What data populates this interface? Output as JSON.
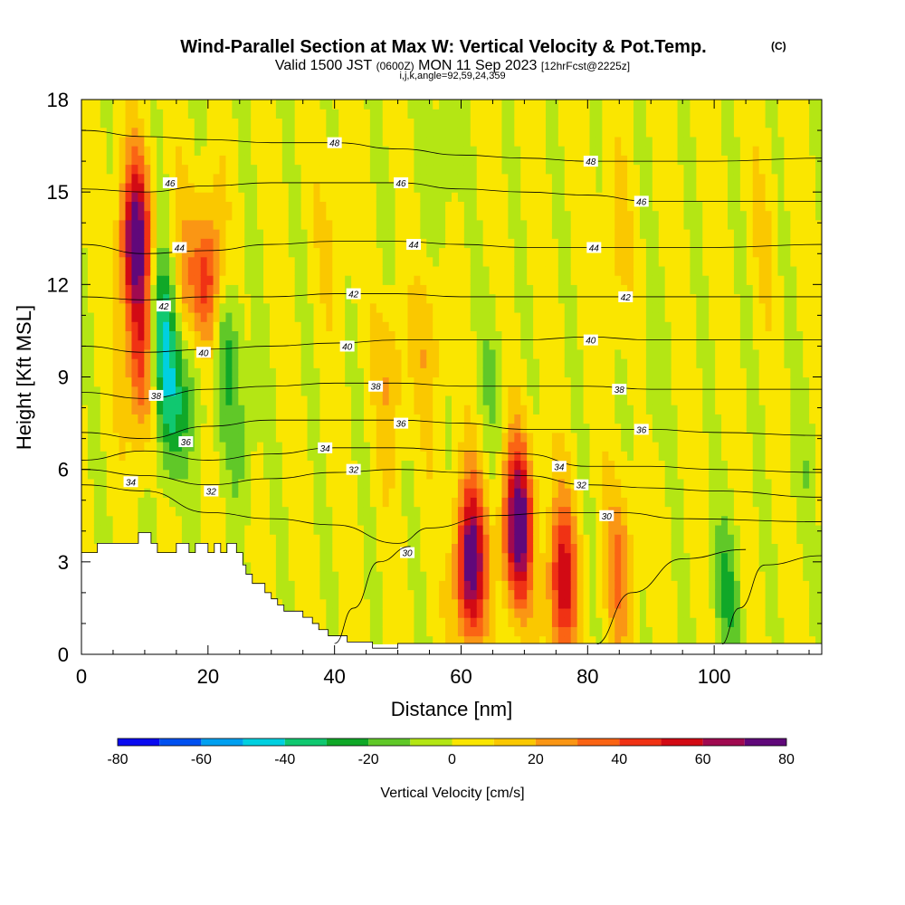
{
  "chart_data": {
    "type": "heatmap",
    "title": "Wind-Parallel Section at Max W: Vertical Velocity & Pot.Temp.",
    "title_mark": "(C)",
    "subtitle_parts": [
      "Valid 1500 JST",
      "(0600Z)",
      "MON 11 Sep 2023",
      "[12hrFcst@2225z]"
    ],
    "subtitle3": "i,j,k,angle=92,59,24,359",
    "xlabel": "Distance [nm]",
    "ylabel": "Height [Kft MSL]",
    "xlim": [
      0,
      117
    ],
    "ylim": [
      0,
      18
    ],
    "xticks": [
      0,
      20,
      40,
      60,
      80,
      100
    ],
    "yticks": [
      0,
      3,
      6,
      9,
      12,
      15,
      18
    ],
    "grid": false,
    "colorbar": {
      "label": "Vertical Velocity [cm/s]",
      "ticks": [
        -80,
        -60,
        -40,
        -20,
        0,
        20,
        40,
        60,
        80
      ],
      "levels": [
        -80,
        -70,
        -60,
        -50,
        -40,
        -30,
        -20,
        -10,
        0,
        10,
        20,
        30,
        40,
        50,
        60,
        70,
        80
      ],
      "colors": [
        "#0a0af0",
        "#0050f0",
        "#00a0f0",
        "#00d0e0",
        "#10c870",
        "#10a828",
        "#60c828",
        "#b4e614",
        "#fae600",
        "#fac800",
        "#fa9614",
        "#fa6414",
        "#f03214",
        "#d20a14",
        "#a00a50",
        "#60087a"
      ]
    },
    "cells": [
      {
        "x": 8.5,
        "z": 13.5,
        "w": 75
      },
      {
        "x": 9.5,
        "z": 9.5,
        "w": 45
      },
      {
        "x": 12.5,
        "z": 10.5,
        "w": -45
      },
      {
        "x": 14,
        "z": 8,
        "w": -30
      },
      {
        "x": 16,
        "z": 12,
        "w": 20
      },
      {
        "x": 18,
        "z": 9,
        "w": -20
      },
      {
        "x": 20,
        "z": 12,
        "w": 48
      },
      {
        "x": 23,
        "z": 10,
        "w": -25
      },
      {
        "x": 25.5,
        "z": 7,
        "w": -15
      },
      {
        "x": 40,
        "z": 14,
        "w": 8
      },
      {
        "x": 49,
        "z": 9,
        "w": 18
      },
      {
        "x": 50,
        "z": 14,
        "w": -5
      },
      {
        "x": 55,
        "z": 10,
        "w": 15
      },
      {
        "x": 57,
        "z": 16,
        "w": -15
      },
      {
        "x": 61.5,
        "z": 3,
        "w": 78
      },
      {
        "x": 65,
        "z": 9,
        "w": -12
      },
      {
        "x": 69,
        "z": 4.2,
        "w": 80
      },
      {
        "x": 76,
        "z": 2.4,
        "w": 55
      },
      {
        "x": 85,
        "z": 2.8,
        "w": 28
      },
      {
        "x": 84,
        "z": 13,
        "w": 12
      },
      {
        "x": 90,
        "z": 9,
        "w": -10
      },
      {
        "x": 102,
        "z": 2,
        "w": -22
      },
      {
        "x": 108,
        "z": 14,
        "w": 6
      },
      {
        "x": 114,
        "z": 6,
        "w": -8
      }
    ],
    "terrain": {
      "x": [
        0,
        2.5,
        2.5,
        5,
        5,
        9,
        9,
        11,
        11,
        12,
        12,
        15,
        15,
        17,
        17,
        18,
        18,
        20,
        20,
        21,
        21,
        22,
        22,
        23,
        23,
        24.5,
        24.5,
        25.5,
        25.5,
        26,
        26,
        27,
        27,
        29,
        29,
        30,
        30,
        31,
        31,
        32,
        32,
        35,
        35,
        36.5,
        36.5,
        37.5,
        37.5,
        39,
        39,
        42,
        42,
        46,
        46,
        50,
        50,
        117
      ],
      "z": [
        3.3,
        3.3,
        3.6,
        3.6,
        3.6,
        3.6,
        3.95,
        3.95,
        3.6,
        3.6,
        3.3,
        3.3,
        3.6,
        3.6,
        3.3,
        3.3,
        3.6,
        3.6,
        3.3,
        3.3,
        3.6,
        3.6,
        3.3,
        3.3,
        3.6,
        3.6,
        3.3,
        3.3,
        2.9,
        2.9,
        2.6,
        2.6,
        2.3,
        2.3,
        2.0,
        2.0,
        1.8,
        1.8,
        1.6,
        1.6,
        1.4,
        1.4,
        1.2,
        1.2,
        1.0,
        1.0,
        0.8,
        0.8,
        0.6,
        0.6,
        0.4,
        0.4,
        0.2,
        0.2,
        0.35,
        0.35
      ]
    },
    "theta_contours": [
      {
        "value": 30,
        "points": [
          [
            0,
            5.5
          ],
          [
            10,
            5.3
          ],
          [
            20,
            4.6
          ],
          [
            30,
            4.4
          ],
          [
            40,
            4.2
          ],
          [
            50,
            3.6
          ],
          [
            55,
            4.1
          ],
          [
            65,
            4.5
          ],
          [
            75,
            4.6
          ],
          [
            85,
            4.6
          ],
          [
            95,
            4.4
          ],
          [
            117,
            4.3
          ]
        ],
        "labels": [
          {
            "text": "30",
            "x": 51.5,
            "z": 3.3
          },
          {
            "text": "30",
            "x": 83,
            "z": 4.5
          }
        ]
      },
      {
        "value": 32,
        "points": [
          [
            0,
            6.0
          ],
          [
            10,
            5.8
          ],
          [
            20,
            5.5
          ],
          [
            30,
            5.7
          ],
          [
            40,
            5.9
          ],
          [
            50,
            6.0
          ],
          [
            60,
            5.9
          ],
          [
            70,
            5.8
          ],
          [
            80,
            5.5
          ],
          [
            90,
            5.4
          ],
          [
            100,
            5.3
          ],
          [
            117,
            5.1
          ]
        ],
        "labels": [
          {
            "text": "32",
            "x": 20.5,
            "z": 5.3
          },
          {
            "text": "32",
            "x": 43,
            "z": 6.0
          },
          {
            "text": "32",
            "x": 79,
            "z": 5.5
          }
        ]
      },
      {
        "value": 34,
        "points": [
          [
            0,
            6.3
          ],
          [
            10,
            6.6
          ],
          [
            20,
            6.3
          ],
          [
            30,
            6.5
          ],
          [
            40,
            6.7
          ],
          [
            50,
            6.7
          ],
          [
            60,
            6.6
          ],
          [
            70,
            6.5
          ],
          [
            80,
            6.1
          ],
          [
            90,
            6.1
          ],
          [
            100,
            6.0
          ],
          [
            117,
            5.9
          ]
        ],
        "labels": [
          {
            "text": "34",
            "x": 7.8,
            "z": 5.6
          },
          {
            "text": "34",
            "x": 38.5,
            "z": 6.7
          },
          {
            "text": "34",
            "x": 75.5,
            "z": 6.1
          }
        ]
      },
      {
        "value": 36,
        "points": [
          [
            0,
            7.2
          ],
          [
            10,
            7.0
          ],
          [
            20,
            7.4
          ],
          [
            30,
            7.6
          ],
          [
            40,
            7.6
          ],
          [
            50,
            7.6
          ],
          [
            60,
            7.5
          ],
          [
            70,
            7.3
          ],
          [
            80,
            7.3
          ],
          [
            90,
            7.3
          ],
          [
            100,
            7.2
          ],
          [
            117,
            7.1
          ]
        ],
        "labels": [
          {
            "text": "36",
            "x": 16.5,
            "z": 6.9
          },
          {
            "text": "36",
            "x": 50.5,
            "z": 7.5
          },
          {
            "text": "36",
            "x": 88.5,
            "z": 7.3
          }
        ]
      },
      {
        "value": 38,
        "points": [
          [
            0,
            8.5
          ],
          [
            10,
            8.3
          ],
          [
            20,
            8.6
          ],
          [
            30,
            8.7
          ],
          [
            40,
            8.8
          ],
          [
            50,
            8.8
          ],
          [
            60,
            8.7
          ],
          [
            70,
            8.7
          ],
          [
            80,
            8.7
          ],
          [
            90,
            8.6
          ],
          [
            100,
            8.6
          ],
          [
            117,
            8.6
          ]
        ],
        "labels": [
          {
            "text": "38",
            "x": 11.8,
            "z": 8.4
          },
          {
            "text": "38",
            "x": 46.5,
            "z": 8.7
          },
          {
            "text": "38",
            "x": 85,
            "z": 8.6
          }
        ]
      },
      {
        "value": 40,
        "points": [
          [
            0,
            10.0
          ],
          [
            10,
            9.8
          ],
          [
            20,
            9.9
          ],
          [
            30,
            10.0
          ],
          [
            40,
            10.1
          ],
          [
            50,
            10.2
          ],
          [
            60,
            10.2
          ],
          [
            70,
            10.2
          ],
          [
            80,
            10.3
          ],
          [
            90,
            10.2
          ],
          [
            100,
            10.2
          ],
          [
            117,
            10.2
          ]
        ],
        "labels": [
          {
            "text": "40",
            "x": 19.3,
            "z": 9.8
          },
          {
            "text": "40",
            "x": 42,
            "z": 10.0
          },
          {
            "text": "40",
            "x": 80.5,
            "z": 10.2
          }
        ]
      },
      {
        "value": 42,
        "points": [
          [
            0,
            11.6
          ],
          [
            10,
            11.5
          ],
          [
            20,
            11.6
          ],
          [
            30,
            11.6
          ],
          [
            40,
            11.7
          ],
          [
            50,
            11.7
          ],
          [
            60,
            11.6
          ],
          [
            70,
            11.6
          ],
          [
            80,
            11.6
          ],
          [
            90,
            11.6
          ],
          [
            100,
            11.6
          ],
          [
            117,
            11.6
          ]
        ],
        "labels": [
          {
            "text": "42",
            "x": 13,
            "z": 11.3
          },
          {
            "text": "42",
            "x": 43,
            "z": 11.7
          },
          {
            "text": "42",
            "x": 86,
            "z": 11.6
          }
        ]
      },
      {
        "value": 44,
        "points": [
          [
            0,
            13.3
          ],
          [
            10,
            13.0
          ],
          [
            20,
            13.1
          ],
          [
            30,
            13.3
          ],
          [
            40,
            13.4
          ],
          [
            50,
            13.4
          ],
          [
            60,
            13.3
          ],
          [
            70,
            13.2
          ],
          [
            80,
            13.2
          ],
          [
            90,
            13.2
          ],
          [
            100,
            13.2
          ],
          [
            117,
            13.3
          ]
        ],
        "labels": [
          {
            "text": "44",
            "x": 15.5,
            "z": 13.2
          },
          {
            "text": "44",
            "x": 52.5,
            "z": 13.3
          },
          {
            "text": "44",
            "x": 81,
            "z": 13.2
          }
        ]
      },
      {
        "value": 46,
        "points": [
          [
            0,
            15.1
          ],
          [
            10,
            15.0
          ],
          [
            20,
            15.2
          ],
          [
            30,
            15.3
          ],
          [
            40,
            15.3
          ],
          [
            50,
            15.3
          ],
          [
            60,
            15.1
          ],
          [
            70,
            15.0
          ],
          [
            80,
            14.9
          ],
          [
            90,
            14.7
          ],
          [
            100,
            14.7
          ],
          [
            117,
            14.7
          ]
        ],
        "labels": [
          {
            "text": "46",
            "x": 14,
            "z": 15.3
          },
          {
            "text": "46",
            "x": 50.5,
            "z": 15.3
          },
          {
            "text": "46",
            "x": 88.5,
            "z": 14.7
          }
        ]
      },
      {
        "value": 48,
        "points": [
          [
            0,
            17.0
          ],
          [
            10,
            16.8
          ],
          [
            20,
            16.7
          ],
          [
            30,
            16.6
          ],
          [
            40,
            16.6
          ],
          [
            50,
            16.4
          ],
          [
            60,
            16.2
          ],
          [
            70,
            16.1
          ],
          [
            80,
            16.0
          ],
          [
            90,
            16.0
          ],
          [
            100,
            16.0
          ],
          [
            117,
            16.1
          ]
        ],
        "labels": [
          {
            "text": "48",
            "x": 40,
            "z": 16.6
          },
          {
            "text": "48",
            "x": 80.5,
            "z": 16.0
          }
        ]
      },
      {
        "value": 28,
        "points": [
          [
            40,
            0.35
          ],
          [
            43,
            1.5
          ],
          [
            47,
            3.0
          ],
          [
            52,
            3.5
          ]
        ],
        "labels": []
      },
      {
        "value": 28,
        "points": [
          [
            81,
            0.3
          ],
          [
            87,
            2.0
          ],
          [
            95,
            3.1
          ],
          [
            105,
            3.4
          ]
        ],
        "labels": []
      },
      {
        "value": 28,
        "points": [
          [
            101,
            0.3
          ],
          [
            104,
            1.5
          ],
          [
            108,
            2.9
          ],
          [
            117,
            3.2
          ]
        ],
        "labels": []
      }
    ]
  }
}
